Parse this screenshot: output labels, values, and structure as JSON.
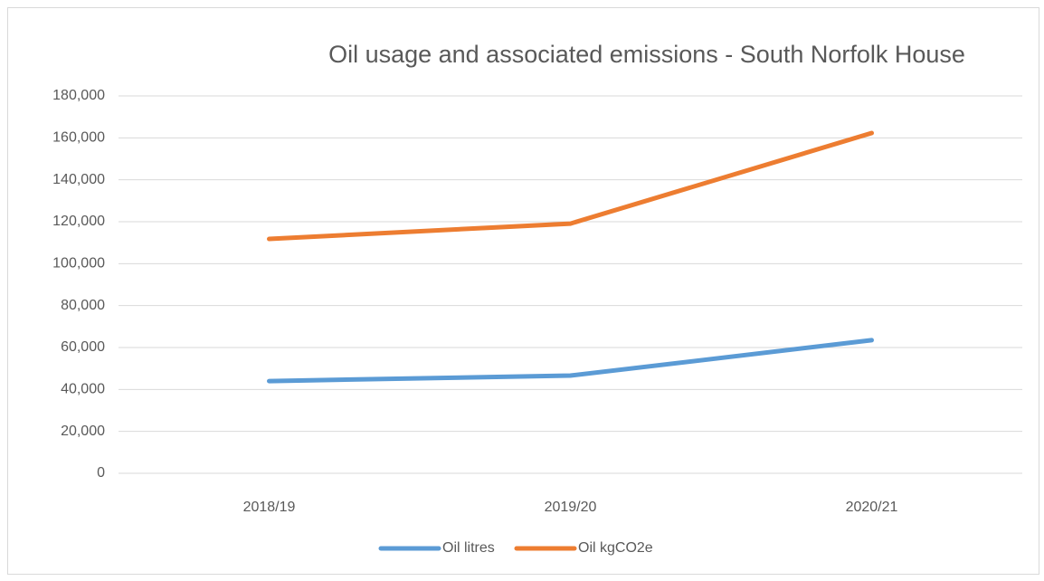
{
  "chart_data": {
    "type": "line",
    "title": "Oil usage and associated emissions - South Norfolk House",
    "categories": [
      "2018/19",
      "2019/20",
      "2020/21"
    ],
    "series": [
      {
        "name": "Oil litres",
        "color": "#5b9bd5",
        "values": [
          44000,
          46600,
          63500
        ]
      },
      {
        "name": "Oil kgCO2e",
        "color": "#ed7d31",
        "values": [
          111800,
          119100,
          162300
        ]
      }
    ],
    "ylim": [
      0,
      180000
    ],
    "yticks": [
      0,
      {
        "value": 20000,
        "label": "20,000"
      },
      {
        "value": 40000,
        "label": "40,000"
      },
      {
        "value": 60000,
        "label": "60,000"
      },
      {
        "value": 80000,
        "label": "80,000"
      },
      {
        "value": 100000,
        "label": "100,000"
      },
      {
        "value": 120000,
        "label": "120,000"
      },
      {
        "value": 140000,
        "label": "140,000"
      },
      {
        "value": 160000,
        "label": "160,000"
      },
      {
        "value": 180000,
        "label": "180,000"
      }
    ],
    "grid": true,
    "legend": "bottom"
  }
}
